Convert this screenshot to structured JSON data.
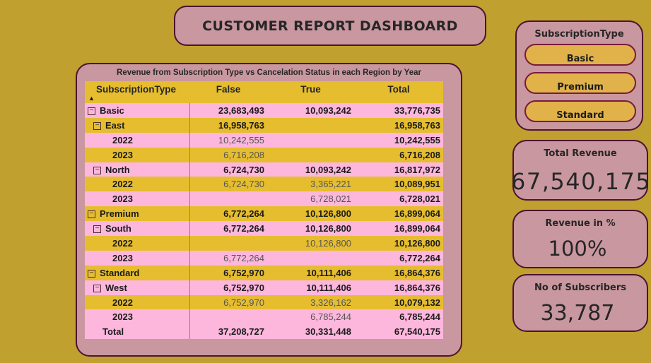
{
  "title": "CUSTOMER REPORT DASHBOARD",
  "matrix": {
    "title": "Revenue from Subscription Type vs Cancelation Status in each Region by Year",
    "headers": {
      "subscription": "SubscriptionType",
      "false": "False",
      "true": "True",
      "total": "Total"
    },
    "rows": [
      {
        "label": "Basic",
        "f": "23,683,493",
        "t": "10,093,242",
        "tot": "33,776,735"
      },
      {
        "label": "East",
        "f": "16,958,763",
        "t": "",
        "tot": "16,958,763"
      },
      {
        "label": "2022",
        "f": "10,242,555",
        "t": "",
        "tot": "10,242,555"
      },
      {
        "label": "2023",
        "f": "6,716,208",
        "t": "",
        "tot": "6,716,208"
      },
      {
        "label": "North",
        "f": "6,724,730",
        "t": "10,093,242",
        "tot": "16,817,972"
      },
      {
        "label": "2022",
        "f": "6,724,730",
        "t": "3,365,221",
        "tot": "10,089,951"
      },
      {
        "label": "2023",
        "f": "",
        "t": "6,728,021",
        "tot": "6,728,021"
      },
      {
        "label": "Premium",
        "f": "6,772,264",
        "t": "10,126,800",
        "tot": "16,899,064"
      },
      {
        "label": "South",
        "f": "6,772,264",
        "t": "10,126,800",
        "tot": "16,899,064"
      },
      {
        "label": "2022",
        "f": "",
        "t": "10,126,800",
        "tot": "10,126,800"
      },
      {
        "label": "2023",
        "f": "6,772,264",
        "t": "",
        "tot": "6,772,264"
      },
      {
        "label": "Standard",
        "f": "6,752,970",
        "t": "10,111,406",
        "tot": "16,864,376"
      },
      {
        "label": "West",
        "f": "6,752,970",
        "t": "10,111,406",
        "tot": "16,864,376"
      },
      {
        "label": "2022",
        "f": "6,752,970",
        "t": "3,326,162",
        "tot": "10,079,132"
      },
      {
        "label": "2023",
        "f": "",
        "t": "6,785,244",
        "tot": "6,785,244"
      }
    ],
    "total": {
      "label": "Total",
      "f": "37,208,727",
      "t": "30,331,448",
      "tot": "67,540,175"
    }
  },
  "slicer": {
    "title": "SubscriptionType",
    "options": [
      "Basic",
      "Premium",
      "Standard"
    ]
  },
  "cards": {
    "total_revenue": {
      "label": "Total Revenue",
      "value": "67,540,175"
    },
    "revenue_pct": {
      "label": "Revenue in %",
      "value": "100%"
    },
    "subscribers": {
      "label": "No of Subscribers",
      "value": "33,787"
    }
  },
  "icons": {
    "expand": "minus-box-icon",
    "sort": "sort-ascending-icon"
  },
  "colors": {
    "background": "#c0a02f",
    "panel": "#c9979f",
    "border": "#4e1230",
    "row_pink": "#fdb6dc",
    "row_gold": "#e6bd2f",
    "slicer_button": "#e1b24a"
  }
}
